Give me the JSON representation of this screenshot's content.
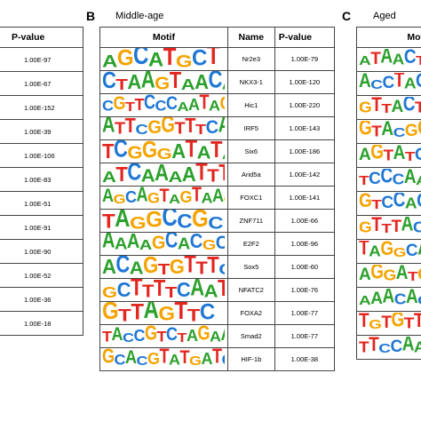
{
  "panelA": {
    "header_pvalue": "P-value",
    "pvalues": [
      "1.00E-97",
      "1.00E-67",
      "1.00E-152",
      "1.00E-39",
      "1.00E-106",
      "1.00E-83",
      "1.00E-51",
      "1.00E-91",
      "1.00E-90",
      "1.00E-52",
      "1.00E-36",
      "1.00E-18"
    ]
  },
  "panelB": {
    "letter": "B",
    "subtitle": "Middle-age",
    "headers": {
      "motif": "Motif",
      "name": "Name",
      "pvalue": "P-value"
    },
    "rows": [
      {
        "motif": "AGCATGCT",
        "name": "Nr2e3",
        "pvalue": "1.00E-79"
      },
      {
        "motif": "CTAAGTAACA",
        "name": "NKX3-1",
        "pvalue": "1.00E-120"
      },
      {
        "motif": "CGTTCCCAATAG",
        "name": "Hic1",
        "pvalue": "1.00E-220"
      },
      {
        "motif": "ATTCGGTTTCA",
        "name": "IRF5",
        "pvalue": "1.00E-143"
      },
      {
        "motif": "TCGGGATATA",
        "name": "Six6",
        "pvalue": "1.00E-186"
      },
      {
        "motif": "ATCAAAATTT",
        "name": "Arid5a",
        "pvalue": "1.00E-142"
      },
      {
        "motif": "AGCAGTAGTAAG",
        "name": "FOXC1",
        "pvalue": "1.00E-141"
      },
      {
        "motif": "TAGGCCGC",
        "name": "ZNF711",
        "pvalue": "1.00E-66"
      },
      {
        "motif": "AAAAGCACGCA",
        "name": "E2F2",
        "pvalue": "1.00E-96"
      },
      {
        "motif": "ACAGTGTTTC",
        "name": "Sox5",
        "pvalue": "1.00E-60"
      },
      {
        "motif": "GCTTTTCAAT",
        "name": "NFATC2",
        "pvalue": "1.00E-76"
      },
      {
        "motif": "GTTAGTTC",
        "name": "FOXA2",
        "pvalue": "1.00E-77"
      },
      {
        "motif": "TACCGTCTAGAA",
        "name": "Smad2",
        "pvalue": "1.00E-77"
      },
      {
        "motif": "GCACGTATGATC",
        "name": "HIF-1b",
        "pvalue": "1.00E-38"
      }
    ]
  },
  "panelC": {
    "letter": "C",
    "subtitle": "Aged",
    "header_motif": "Moti",
    "motifs": [
      "ATAACT",
      "ACCTACT",
      "GTTACT",
      "GTACGG",
      "AGTATCA",
      "TCCCAA",
      "GTCCACT",
      "GTTTACA",
      "TAGGCA",
      "AGGATG",
      "AAACACT",
      "TGTGTT",
      "TTCCAA"
    ]
  }
}
